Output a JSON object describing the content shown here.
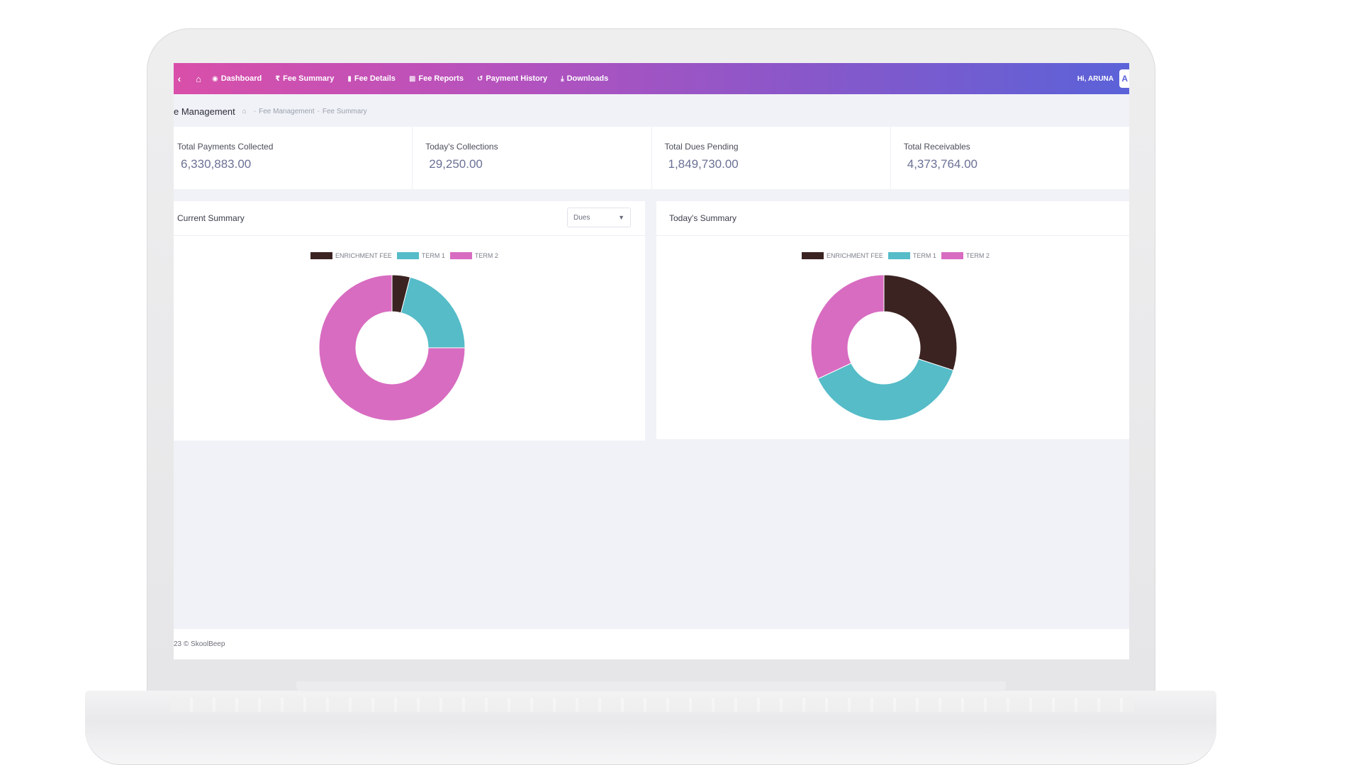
{
  "colors": {
    "enrichment": "#3b2322",
    "term1": "#55bcc8",
    "term2": "#d86cc1",
    "chart_bg": "#ffffff"
  },
  "nav": {
    "back_icon": "chevron-left-icon",
    "home_icon": "home-icon",
    "items": [
      {
        "label": "Dashboard",
        "icon": "palette-icon"
      },
      {
        "label": "Fee Summary",
        "icon": "rupee-icon"
      },
      {
        "label": "Fee Details",
        "icon": "document-icon"
      },
      {
        "label": "Fee Reports",
        "icon": "bar-chart-icon"
      },
      {
        "label": "Payment History",
        "icon": "history-icon"
      },
      {
        "label": "Downloads",
        "icon": "download-icon"
      }
    ],
    "user_greeting": "Hi, ARUNA",
    "avatar_initial": "A"
  },
  "breadcrumb": {
    "page_title": "e Management",
    "items": [
      "Fee Management",
      "Fee Summary"
    ]
  },
  "stats": [
    {
      "label": "Total Payments Collected",
      "value": "6,330,883.00"
    },
    {
      "label": "Today's Collections",
      "value": "29,250.00"
    },
    {
      "label": "Total Dues Pending",
      "value": "1,849,730.00"
    },
    {
      "label": "Total Receivables",
      "value": "4,373,764.00"
    }
  ],
  "current_summary": {
    "title": "Current Summary",
    "select_value": "Dues"
  },
  "todays_summary": {
    "title": "Today's Summary"
  },
  "chart_data": [
    {
      "type": "pie",
      "title": "",
      "legend_position": "top",
      "labels": [
        "ENRICHMENT FEE",
        "TERM 1",
        "TERM 2"
      ],
      "values": [
        4,
        21,
        75
      ]
    },
    {
      "type": "pie",
      "title": "",
      "legend_position": "top",
      "labels": [
        "ENRICHMENT FEE",
        "TERM 1",
        "TERM 2"
      ],
      "values": [
        30,
        38,
        32
      ]
    }
  ],
  "footer": {
    "text": "23 © SkoolBeep"
  }
}
